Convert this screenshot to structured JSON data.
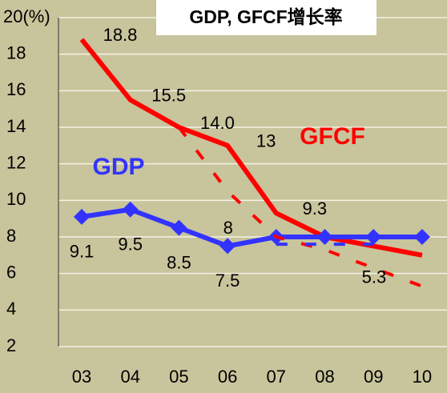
{
  "chart_data": {
    "type": "line",
    "title": "GDP, GFCF增长率",
    "categories": [
      "03",
      "04",
      "05",
      "06",
      "07",
      "08",
      "09",
      "10"
    ],
    "series": [
      {
        "name": "GFCF",
        "color": "#ff0000",
        "style": "solid",
        "values": [
          18.8,
          15.5,
          14.0,
          13,
          9.3,
          8,
          7.5,
          7
        ],
        "value_labels": [
          "18.8",
          "15.5",
          "14.0",
          "13",
          "9.3",
          null,
          null,
          "7"
        ]
      },
      {
        "name": "GDP",
        "color": "#3333ff",
        "style": "solid",
        "marker": "diamond",
        "values": [
          9.1,
          9.5,
          8.5,
          7.5,
          8,
          8,
          8,
          8
        ],
        "value_labels": [
          "9.1",
          "9.5",
          "8.5",
          "7.5",
          null,
          null,
          null,
          null
        ]
      },
      {
        "color": "#ff0000",
        "style": "dashed",
        "values": [
          null,
          null,
          14.0,
          10.5,
          8,
          7.3,
          6.3,
          5.3
        ],
        "value_labels": [
          null,
          null,
          null,
          null,
          "8",
          null,
          null,
          "5.3"
        ]
      },
      {
        "color": "#3333ff",
        "style": "dashed",
        "values": [
          null,
          null,
          null,
          null,
          7.6,
          7.6,
          7.6,
          null
        ]
      }
    ],
    "ylim": [
      2,
      20
    ],
    "yticks": [
      2,
      4,
      6,
      8,
      10,
      12,
      14,
      16,
      18,
      {
        "value": 20,
        "label": "20(%)"
      }
    ],
    "grid": true
  }
}
